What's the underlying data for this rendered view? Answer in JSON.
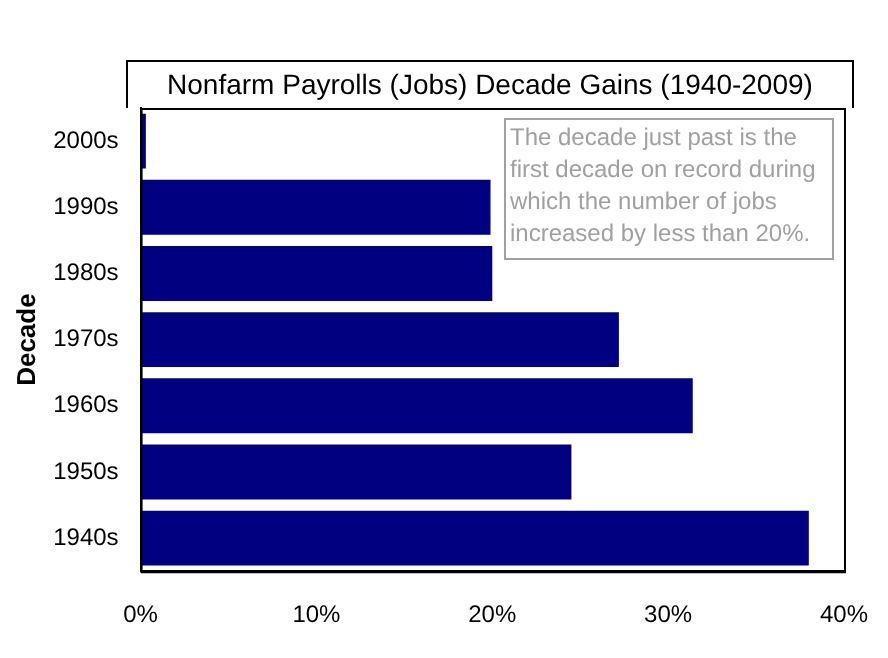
{
  "chart_data": {
    "type": "bar",
    "orientation": "horizontal",
    "title": "Nonfarm Payrolls (Jobs) Decade Gains (1940-2009)",
    "ylabel": "Decade",
    "categories": [
      "2000s",
      "1990s",
      "1980s",
      "1970s",
      "1960s",
      "1950s",
      "1940s"
    ],
    "values": [
      0.3,
      19.9,
      20.0,
      27.2,
      31.4,
      24.5,
      38.0
    ],
    "color": "#000080",
    "xlim": [
      0,
      40
    ],
    "xticks": [
      {
        "value": 0,
        "label": "0%"
      },
      {
        "value": 10,
        "label": "10%"
      },
      {
        "value": 20,
        "label": "20%"
      },
      {
        "value": 30,
        "label": "30%"
      },
      {
        "value": 40,
        "label": "40%"
      }
    ],
    "grid": false,
    "legend": false,
    "annotations": [
      "The decade just past is the first decade on record during which the number of jobs increased by less than 20%."
    ]
  }
}
